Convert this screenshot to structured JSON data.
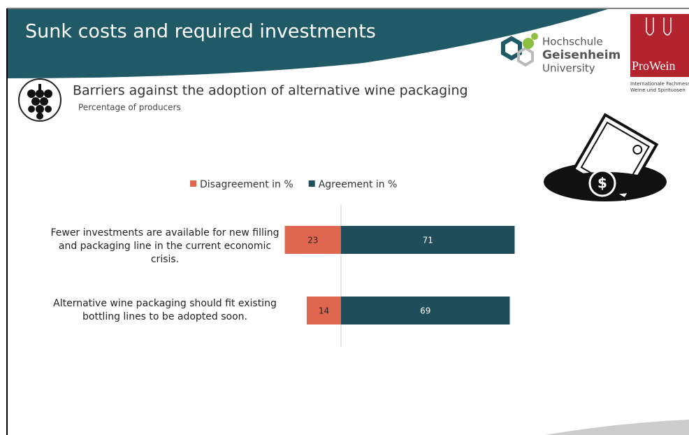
{
  "header": {
    "title": "Sunk costs and required investments"
  },
  "logos": {
    "hochschule": [
      "Hochschule",
      "Geisenheim",
      "University"
    ],
    "prowein": "ProWein",
    "prowein_sub": [
      "Internationale Fachmesse",
      "Weine und Spirituosen"
    ]
  },
  "chart_data": {
    "type": "diverging-bar",
    "title": "Barriers against the adoption of alternative wine packaging",
    "subtitle": "Percentage of producers",
    "categories": [
      "Fewer investments are available for new filling and packaging line in the current economic crisis.",
      "Alternative wine packaging should fit existing bottling lines to be adopted soon."
    ],
    "series": [
      {
        "name": "Disagreement in %",
        "color": "#e0674f",
        "values": [
          23,
          14
        ]
      },
      {
        "name": "Agreement in %",
        "color": "#1f4d5a",
        "values": [
          71,
          69
        ]
      }
    ]
  }
}
